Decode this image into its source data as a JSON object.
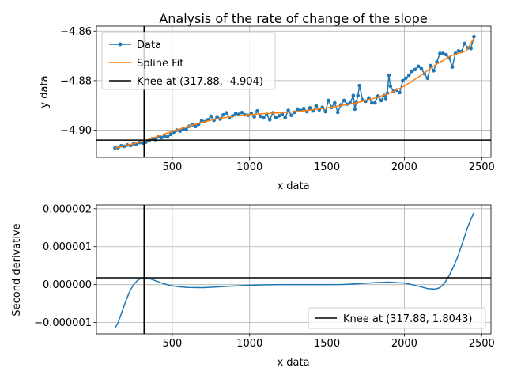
{
  "chart_data": [
    {
      "type": "line",
      "title": "Analysis of the rate of change of the slope",
      "xlabel": "x data",
      "ylabel": "y data",
      "xlim": [
        10,
        2560
      ],
      "ylim": [
        -4.911,
        -4.858
      ],
      "xticks": [
        500,
        1000,
        1500,
        2000,
        2500
      ],
      "xtick_labels": [
        "500",
        "1000",
        "1500",
        "2000",
        "2500"
      ],
      "yticks": [
        -4.9,
        -4.88,
        -4.86
      ],
      "ytick_labels": [
        "−4.90",
        "−4.88",
        "−4.86"
      ],
      "grid": true,
      "legend_position": "upper-left",
      "colors": {
        "data": "#1f77b4",
        "fit": "#ff7f0e",
        "knee": "#000000"
      },
      "series": [
        {
          "name": "Data",
          "style": "line-dots",
          "x": [
            130,
            150,
            170,
            190,
            210,
            230,
            250,
            270,
            290,
            310,
            330,
            350,
            370,
            390,
            410,
            430,
            450,
            470,
            490,
            510,
            530,
            550,
            570,
            590,
            610,
            630,
            650,
            670,
            690,
            710,
            730,
            750,
            770,
            790,
            810,
            830,
            850,
            870,
            890,
            910,
            930,
            950,
            970,
            990,
            1010,
            1030,
            1050,
            1070,
            1090,
            1110,
            1130,
            1150,
            1170,
            1190,
            1210,
            1230,
            1250,
            1270,
            1290,
            1310,
            1330,
            1350,
            1370,
            1390,
            1410,
            1430,
            1450,
            1470,
            1490,
            1510,
            1530,
            1550,
            1570,
            1590,
            1610,
            1630,
            1650,
            1670,
            1680,
            1690,
            1700,
            1710,
            1730,
            1750,
            1770,
            1790,
            1810,
            1830,
            1850,
            1870,
            1880,
            1890,
            1900,
            1910,
            1930,
            1950,
            1970,
            1990,
            2010,
            2030,
            2050,
            2070,
            2090,
            2110,
            2130,
            2150,
            2170,
            2190,
            2210,
            2230,
            2250,
            2270,
            2290,
            2310,
            2330,
            2350,
            2370,
            2390,
            2410,
            2430,
            2450
          ],
          "y": [
            -4.9072,
            -4.9071,
            -4.9063,
            -4.9065,
            -4.906,
            -4.9062,
            -4.9055,
            -4.9058,
            -4.905,
            -4.9052,
            -4.9048,
            -4.9042,
            -4.9035,
            -4.9038,
            -4.9026,
            -4.903,
            -4.9024,
            -4.9027,
            -4.9017,
            -4.9008,
            -4.9,
            -4.9004,
            -4.8995,
            -4.8998,
            -4.8984,
            -4.8978,
            -4.8985,
            -4.8976,
            -4.8962,
            -4.8966,
            -4.8958,
            -4.8944,
            -4.896,
            -4.8946,
            -4.8955,
            -4.8938,
            -4.893,
            -4.8948,
            -4.8942,
            -4.8933,
            -4.8936,
            -4.8929,
            -4.8938,
            -4.894,
            -4.8932,
            -4.8946,
            -4.8922,
            -4.8944,
            -4.895,
            -4.8936,
            -4.8958,
            -4.893,
            -4.8948,
            -4.8942,
            -4.8935,
            -4.895,
            -4.892,
            -4.894,
            -4.8928,
            -4.8915,
            -4.8921,
            -4.8913,
            -4.8925,
            -4.891,
            -4.8922,
            -4.8902,
            -4.8918,
            -4.8908,
            -4.8925,
            -4.888,
            -4.8908,
            -4.889,
            -4.8928,
            -4.8898,
            -4.888,
            -4.8895,
            -4.889,
            -4.886,
            -4.8915,
            -4.8888,
            -4.886,
            -4.882,
            -4.8878,
            -4.8883,
            -4.887,
            -4.889,
            -4.889,
            -4.8862,
            -4.888,
            -4.886,
            -4.8875,
            -4.885,
            -4.8778,
            -4.8822,
            -4.8843,
            -4.8838,
            -4.8848,
            -4.88,
            -4.879,
            -4.8778,
            -4.8762,
            -4.8755,
            -4.8742,
            -4.8752,
            -4.8772,
            -4.879,
            -4.874,
            -4.876,
            -4.8725,
            -4.869,
            -4.869,
            -4.8695,
            -4.8708,
            -4.8745,
            -4.869,
            -4.868,
            -4.8682,
            -4.865,
            -4.8668,
            -4.867,
            -4.8622
          ]
        },
        {
          "name": "Spline Fit",
          "style": "line",
          "x": [
            130,
            200,
            300,
            400,
            500,
            600,
            700,
            800,
            900,
            1000,
            1100,
            1200,
            1300,
            1400,
            1500,
            1600,
            1700,
            1800,
            1900,
            2000,
            2100,
            2200,
            2300,
            2400,
            2450
          ],
          "y": [
            -4.9072,
            -4.9062,
            -4.9047,
            -4.9026,
            -4.9005,
            -4.8985,
            -4.8967,
            -4.8953,
            -4.8943,
            -4.8937,
            -4.8933,
            -4.893,
            -4.8925,
            -4.8918,
            -4.891,
            -4.89,
            -4.8888,
            -4.8872,
            -4.8852,
            -4.8822,
            -4.8782,
            -4.8737,
            -4.87,
            -4.868,
            -4.8628
          ]
        }
      ],
      "knee": {
        "label": "Knee at (317.88, -4.904)",
        "x": 317.88,
        "y": -4.904
      }
    },
    {
      "type": "line",
      "title": "",
      "xlabel": "x data",
      "ylabel": "Second derivative",
      "xlim": [
        10,
        2560
      ],
      "ylim": [
        -1.3e-06,
        2.1e-06
      ],
      "xticks": [
        500,
        1000,
        1500,
        2000,
        2500
      ],
      "xtick_labels": [
        "500",
        "1000",
        "1500",
        "2000",
        "2500"
      ],
      "yticks": [
        -1e-06,
        0,
        1e-06,
        2e-06
      ],
      "ytick_labels": [
        "−0.000001",
        "0.000000",
        "0.000001",
        "0.000002"
      ],
      "grid": true,
      "legend_position": "lower-right",
      "series": [
        {
          "name": "",
          "style": "line",
          "x": [
            130,
            150,
            175,
            200,
            225,
            250,
            275,
            300,
            318,
            340,
            370,
            400,
            450,
            500,
            550,
            600,
            700,
            800,
            900,
            1000,
            1100,
            1200,
            1300,
            1400,
            1500,
            1600,
            1700,
            1800,
            1900,
            2000,
            2050,
            2100,
            2150,
            2200,
            2230,
            2260,
            2290,
            2320,
            2350,
            2380,
            2410,
            2430,
            2450
          ],
          "y": [
            -1.15e-06,
            -1e-06,
            -7.2e-07,
            -4.3e-07,
            -1.8e-07,
            1e-09,
            1.1e-07,
            1.72e-07,
            1.8e-07,
            1.72e-07,
            1.35e-07,
            8.8e-08,
            1.8e-08,
            -3.2e-08,
            -6e-08,
            -7.5e-08,
            -8e-08,
            -6e-08,
            -3.5e-08,
            -1.5e-08,
            -5e-09,
            0.0,
            0.0,
            0.0,
            0.0,
            5e-09,
            2.5e-08,
            5e-08,
            6.5e-08,
            4e-08,
            0.0,
            -5e-08,
            -1.05e-07,
            -1.2e-07,
            -8e-08,
            4e-08,
            2.4e-07,
            4.9e-07,
            7.9e-07,
            1.15e-06,
            1.52e-06,
            1.72e-06,
            1.9e-06
          ]
        }
      ],
      "knee": {
        "label": "Knee at (317.88, 1.8043)",
        "x": 317.88,
        "y": 1.8e-07
      }
    }
  ]
}
